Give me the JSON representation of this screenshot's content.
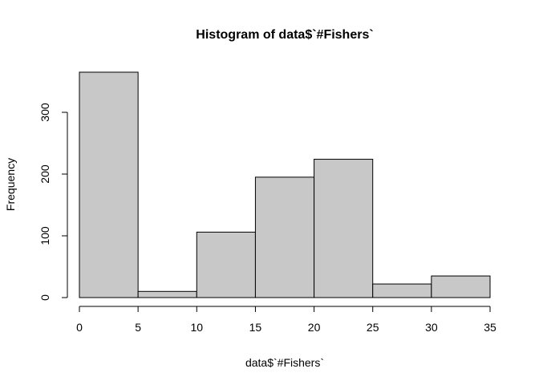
{
  "chart_data": {
    "type": "bar",
    "title": "Histogram of data$`#Fishers`",
    "xlabel": "data$`#Fishers`",
    "ylabel": "Frequency",
    "bins": [
      {
        "start": 0,
        "end": 5,
        "count": 365
      },
      {
        "start": 5,
        "end": 10,
        "count": 10
      },
      {
        "start": 10,
        "end": 15,
        "count": 106
      },
      {
        "start": 15,
        "end": 20,
        "count": 195
      },
      {
        "start": 20,
        "end": 25,
        "count": 224
      },
      {
        "start": 25,
        "end": 30,
        "count": 22
      },
      {
        "start": 30,
        "end": 35,
        "count": 35
      }
    ],
    "x_ticks": [
      0,
      5,
      10,
      15,
      20,
      25,
      30,
      35
    ],
    "y_ticks": [
      0,
      100,
      200,
      300
    ],
    "xlim": [
      0,
      35
    ],
    "ylim": [
      0,
      365
    ],
    "grid": false,
    "colors": {
      "bar_fill": "#c8c8c8",
      "bar_stroke": "#000000"
    }
  }
}
